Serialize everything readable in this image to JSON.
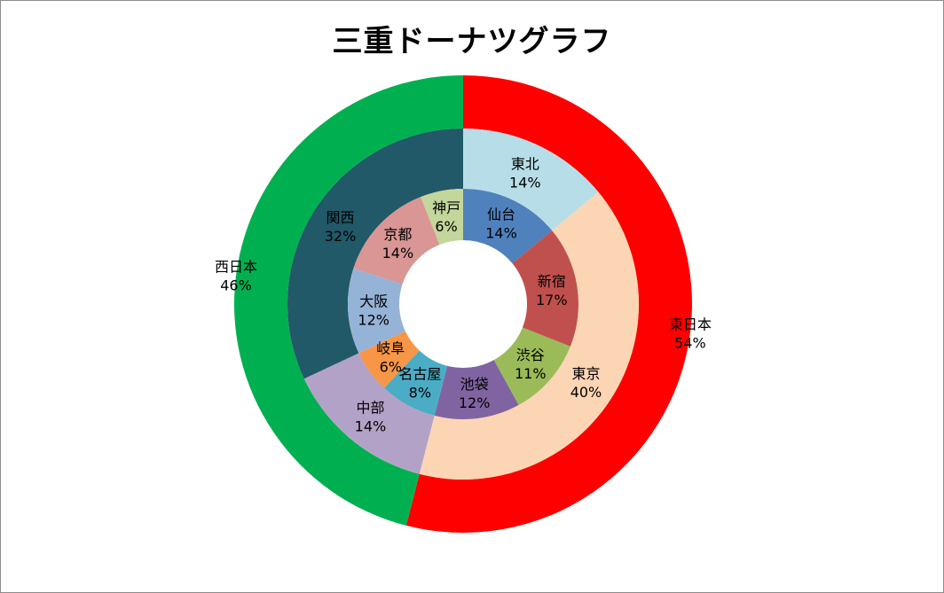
{
  "chart_data": {
    "type": "pie",
    "title": "三重ドーナツグラフ",
    "rings": [
      {
        "name": "",
        "slices": [
          {
            "label": "東日本",
            "value": 54,
            "value_text": "54%",
            "color": "#ff0000"
          },
          {
            "label": "西日本",
            "value": 46,
            "value_text": "46%",
            "color": "#00b050"
          }
        ]
      },
      {
        "name": "",
        "slices": [
          {
            "label": "東北",
            "value": 14,
            "value_text": "14%",
            "color": "#b7dee8"
          },
          {
            "label": "東京",
            "value": 40,
            "value_text": "40%",
            "color": "#fcd5b5"
          },
          {
            "label": "中部",
            "value": 14,
            "value_text": "14%",
            "color": "#b3a2c7"
          },
          {
            "label": "関西",
            "value": 32,
            "value_text": "32%",
            "color": "#215968"
          }
        ]
      },
      {
        "name": "",
        "slices": [
          {
            "label": "仙台",
            "value": 14,
            "value_text": "14%",
            "color": "#4f81bd"
          },
          {
            "label": "新宿",
            "value": 17,
            "value_text": "17%",
            "color": "#c0504d"
          },
          {
            "label": "渋谷",
            "value": 11,
            "value_text": "11%",
            "color": "#9bbb59"
          },
          {
            "label": "池袋",
            "value": 12,
            "value_text": "12%",
            "color": "#8064a2"
          },
          {
            "label": "名古屋",
            "value": 8,
            "value_text": "8%",
            "color": "#4bacc6"
          },
          {
            "label": "岐阜",
            "value": 6,
            "value_text": "6%",
            "color": "#f79646"
          },
          {
            "label": "大阪",
            "value": 12,
            "value_text": "12%",
            "color": "#95b3d7"
          },
          {
            "label": "京都",
            "value": 14,
            "value_text": "14%",
            "color": "#d99694"
          },
          {
            "label": "神戸",
            "value": 6,
            "value_text": "6%",
            "color": "#c3d69b"
          }
        ]
      }
    ],
    "legend": "none"
  }
}
